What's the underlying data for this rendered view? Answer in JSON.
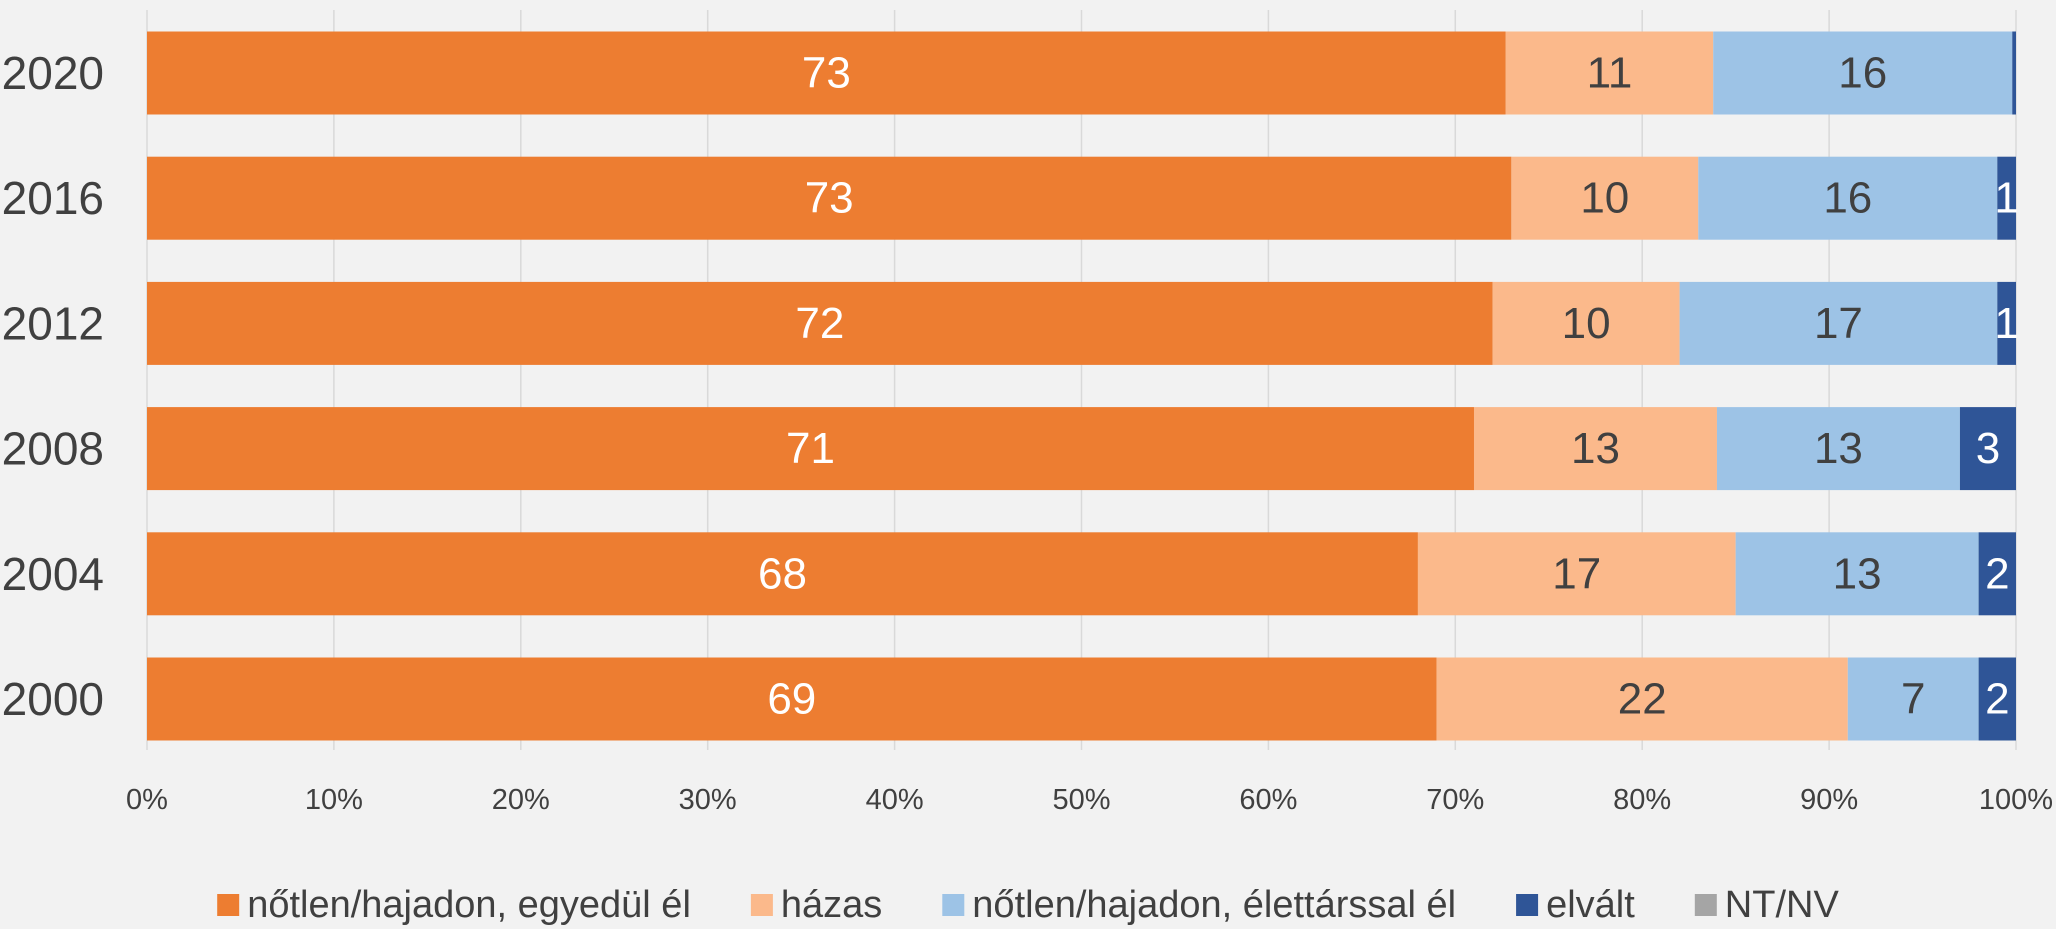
{
  "chart_data": {
    "type": "stacked-bar-horizontal",
    "categories": [
      "2020",
      "2016",
      "2012",
      "2008",
      "2004",
      "2000"
    ],
    "series": [
      {
        "name": "nőtlen/hajadon, egyedül él",
        "color": "#ed7d31",
        "values": [
          72.7,
          73,
          72,
          71,
          68,
          69
        ],
        "value_labels": [
          "73",
          "73",
          "72",
          "71",
          "68",
          "69"
        ]
      },
      {
        "name": "házas",
        "color": "#fbb98b",
        "values": [
          11.1,
          10,
          10,
          13,
          17,
          22
        ],
        "value_labels": [
          "11",
          "10",
          "10",
          "13",
          "17",
          "22"
        ]
      },
      {
        "name": "nőtlen/hajadon, élettárssal él",
        "color": "#9dc3e6",
        "values": [
          16,
          16,
          17,
          13,
          13,
          7
        ],
        "value_labels": [
          "16",
          "16",
          "17",
          "13",
          "13",
          "7"
        ]
      },
      {
        "name": "elvált",
        "color": "#2f5597",
        "values": [
          0.2,
          1,
          1,
          3,
          2,
          2
        ],
        "value_labels": [
          null,
          "1",
          "1",
          "3",
          "2",
          "2"
        ]
      },
      {
        "name": "NT/NV",
        "color": "#a5a5a5",
        "values": [
          0,
          0,
          0,
          0,
          0,
          0
        ]
      }
    ],
    "xlim": [
      0,
      100
    ],
    "xticks": [
      {
        "value": 0,
        "label": "0%"
      },
      {
        "value": 10,
        "label": "10%"
      },
      {
        "value": 20,
        "label": "20%"
      },
      {
        "value": 30,
        "label": "30%"
      },
      {
        "value": 40,
        "label": "40%"
      },
      {
        "value": 50,
        "label": "50%"
      },
      {
        "value": 60,
        "label": "60%"
      },
      {
        "value": 70,
        "label": "70%"
      },
      {
        "value": 80,
        "label": "80%"
      },
      {
        "value": 90,
        "label": "90%"
      },
      {
        "value": 100,
        "label": "100%"
      }
    ],
    "grid": true,
    "legend": "bottom"
  }
}
